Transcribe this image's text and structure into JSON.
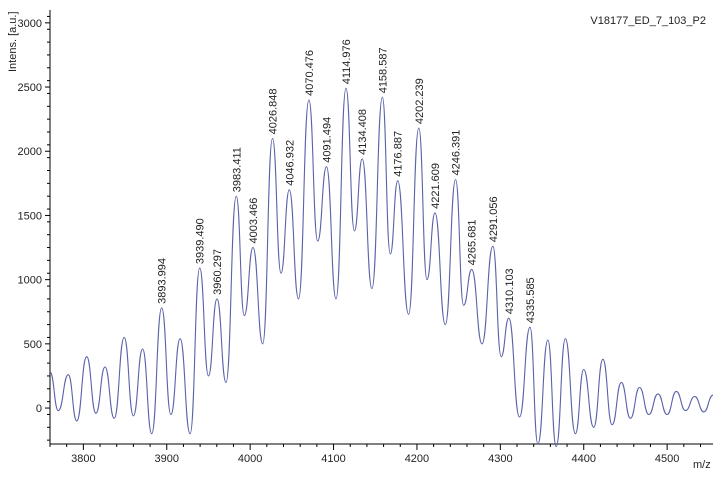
{
  "chart_data": {
    "type": "line",
    "title": "V18177_ED_7_103_P2",
    "xlabel": "m/z",
    "ylabel": "Intens. [a.u.]",
    "xlim": [
      3760,
      4555
    ],
    "ylim": [
      -280,
      3100
    ],
    "x_ticks": [
      "3800",
      "3900",
      "4000",
      "4100",
      "4200",
      "4300",
      "4400",
      "4500"
    ],
    "y_ticks": [
      "0",
      "500",
      "1000",
      "1500",
      "2000",
      "2500",
      "3000"
    ],
    "grid": false,
    "peaks": [
      {
        "x": 3893.994,
        "y": 780,
        "label": "3893.994"
      },
      {
        "x": 3939.49,
        "y": 1090,
        "label": "3939.490"
      },
      {
        "x": 3960.297,
        "y": 850,
        "label": "3960.297"
      },
      {
        "x": 3983.411,
        "y": 1650,
        "label": "3983.411"
      },
      {
        "x": 4003.466,
        "y": 1250,
        "label": "4003.466"
      },
      {
        "x": 4026.848,
        "y": 2100,
        "label": "4026.848"
      },
      {
        "x": 4046.932,
        "y": 1700,
        "label": "4046.932"
      },
      {
        "x": 4070.476,
        "y": 2400,
        "label": "4070.476"
      },
      {
        "x": 4091.494,
        "y": 1880,
        "label": "4091.494"
      },
      {
        "x": 4114.976,
        "y": 2490,
        "label": "4114.976"
      },
      {
        "x": 4134.408,
        "y": 1940,
        "label": "4134.408"
      },
      {
        "x": 4158.587,
        "y": 2420,
        "label": "4158.587"
      },
      {
        "x": 4176.887,
        "y": 1770,
        "label": "4176.887"
      },
      {
        "x": 4202.239,
        "y": 2180,
        "label": "4202.239"
      },
      {
        "x": 4221.609,
        "y": 1520,
        "label": "4221.609"
      },
      {
        "x": 4246.391,
        "y": 1780,
        "label": "4246.391"
      },
      {
        "x": 4265.681,
        "y": 1080,
        "label": "4265.681"
      },
      {
        "x": 4291.056,
        "y": 1260,
        "label": "4291.056"
      },
      {
        "x": 4310.103,
        "y": 700,
        "label": "4310.103"
      },
      {
        "x": 4335.585,
        "y": 630,
        "label": "4335.585"
      }
    ],
    "series": [
      {
        "x": [
          3760,
          3770,
          3782,
          3792,
          3804,
          3815,
          3826,
          3837,
          3849,
          3860,
          3871,
          3882,
          3893.994,
          3905,
          3916,
          3928,
          3939.49,
          3950,
          3960.297,
          3971,
          3983.411,
          3993,
          4003.466,
          4015,
          4026.848,
          4037,
          4046.932,
          4058,
          4070.476,
          4081,
          4091.494,
          4103,
          4114.976,
          4125,
          4134.408,
          4146,
          4158.587,
          4168,
          4176.887,
          4190,
          4202.239,
          4212,
          4221.609,
          4234,
          4246.391,
          4256,
          4265.681,
          4278,
          4291.056,
          4301,
          4310.103,
          4323,
          4335.585,
          4345,
          4357,
          4367,
          4378,
          4390,
          4400,
          4412,
          4423,
          4434,
          4445,
          4456,
          4467,
          4478,
          4489,
          4500,
          4511,
          4522,
          4533,
          4544,
          4555
        ],
        "y": [
          280,
          -20,
          260,
          -100,
          400,
          -40,
          320,
          -80,
          550,
          -60,
          460,
          -200,
          780,
          -50,
          540,
          -200,
          1090,
          250,
          850,
          200,
          1650,
          720,
          1250,
          500,
          2100,
          1050,
          1700,
          850,
          2400,
          1300,
          1880,
          850,
          2490,
          1380,
          1940,
          930,
          2420,
          1200,
          1770,
          730,
          2180,
          1000,
          1520,
          650,
          1780,
          800,
          1080,
          500,
          1260,
          400,
          700,
          -70,
          630,
          -280,
          530,
          -300,
          540,
          -200,
          300,
          -150,
          380,
          -130,
          200,
          -80,
          160,
          -50,
          110,
          -50,
          130,
          -20,
          90,
          -30,
          100
        ]
      }
    ]
  }
}
